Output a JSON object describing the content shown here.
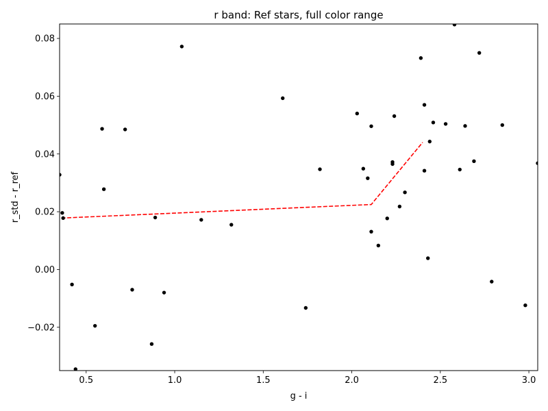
{
  "chart_data": {
    "type": "scatter",
    "title": "r band: Ref stars, full color range",
    "xlabel": "g - i",
    "ylabel": "r_std - r_ref",
    "xlim": [
      0.35,
      3.05
    ],
    "ylim": [
      -0.035,
      0.085
    ],
    "xticks": [
      0.5,
      1.0,
      1.5,
      2.0,
      2.5,
      3.0
    ],
    "xtick_labels": [
      "0.5",
      "1.0",
      "1.5",
      "2.0",
      "2.5",
      "3.0"
    ],
    "yticks": [
      -0.02,
      0.0,
      0.02,
      0.04,
      0.06,
      0.08
    ],
    "ytick_labels": [
      "−0.02",
      "0.00",
      "0.02",
      "0.04",
      "0.06",
      "0.08"
    ],
    "grid": false,
    "colors": {
      "points": "#000000",
      "fit_line": "#ff0000"
    },
    "points": [
      {
        "x": 0.35,
        "y": 0.0328
      },
      {
        "x": 0.365,
        "y": 0.0196
      },
      {
        "x": 0.37,
        "y": 0.0178
      },
      {
        "x": 0.42,
        "y": -0.0052
      },
      {
        "x": 0.44,
        "y": -0.0345
      },
      {
        "x": 0.55,
        "y": -0.0195
      },
      {
        "x": 0.59,
        "y": 0.0487
      },
      {
        "x": 0.6,
        "y": 0.0278
      },
      {
        "x": 0.72,
        "y": 0.0485
      },
      {
        "x": 0.76,
        "y": -0.007
      },
      {
        "x": 0.87,
        "y": -0.0258
      },
      {
        "x": 0.89,
        "y": 0.018
      },
      {
        "x": 0.94,
        "y": -0.008
      },
      {
        "x": 1.04,
        "y": 0.0772
      },
      {
        "x": 1.15,
        "y": 0.0172
      },
      {
        "x": 1.32,
        "y": 0.0155
      },
      {
        "x": 1.61,
        "y": 0.0593
      },
      {
        "x": 1.74,
        "y": -0.0133
      },
      {
        "x": 1.82,
        "y": 0.0347
      },
      {
        "x": 2.03,
        "y": 0.054
      },
      {
        "x": 2.065,
        "y": 0.0349
      },
      {
        "x": 2.09,
        "y": 0.0316
      },
      {
        "x": 2.11,
        "y": 0.0131
      },
      {
        "x": 2.11,
        "y": 0.0496
      },
      {
        "x": 2.15,
        "y": 0.0083
      },
      {
        "x": 2.2,
        "y": 0.0177
      },
      {
        "x": 2.23,
        "y": 0.0372
      },
      {
        "x": 2.23,
        "y": 0.0365
      },
      {
        "x": 2.24,
        "y": 0.0531
      },
      {
        "x": 2.27,
        "y": 0.0218
      },
      {
        "x": 2.3,
        "y": 0.0267
      },
      {
        "x": 2.39,
        "y": 0.0732
      },
      {
        "x": 2.41,
        "y": 0.057
      },
      {
        "x": 2.41,
        "y": 0.0342
      },
      {
        "x": 2.43,
        "y": 0.0039
      },
      {
        "x": 2.44,
        "y": 0.0443
      },
      {
        "x": 2.46,
        "y": 0.0509
      },
      {
        "x": 2.53,
        "y": 0.0504
      },
      {
        "x": 2.58,
        "y": 0.0848
      },
      {
        "x": 2.61,
        "y": 0.0346
      },
      {
        "x": 2.64,
        "y": 0.0497
      },
      {
        "x": 2.69,
        "y": 0.0375
      },
      {
        "x": 2.72,
        "y": 0.075
      },
      {
        "x": 2.79,
        "y": -0.0042
      },
      {
        "x": 2.85,
        "y": 0.05
      },
      {
        "x": 2.98,
        "y": -0.0124
      },
      {
        "x": 3.05,
        "y": 0.0368
      }
    ],
    "fit_line": {
      "style": "dashed",
      "x": [
        0.36,
        2.11,
        2.4
      ],
      "y": [
        0.0178,
        0.0225,
        0.044
      ]
    }
  }
}
